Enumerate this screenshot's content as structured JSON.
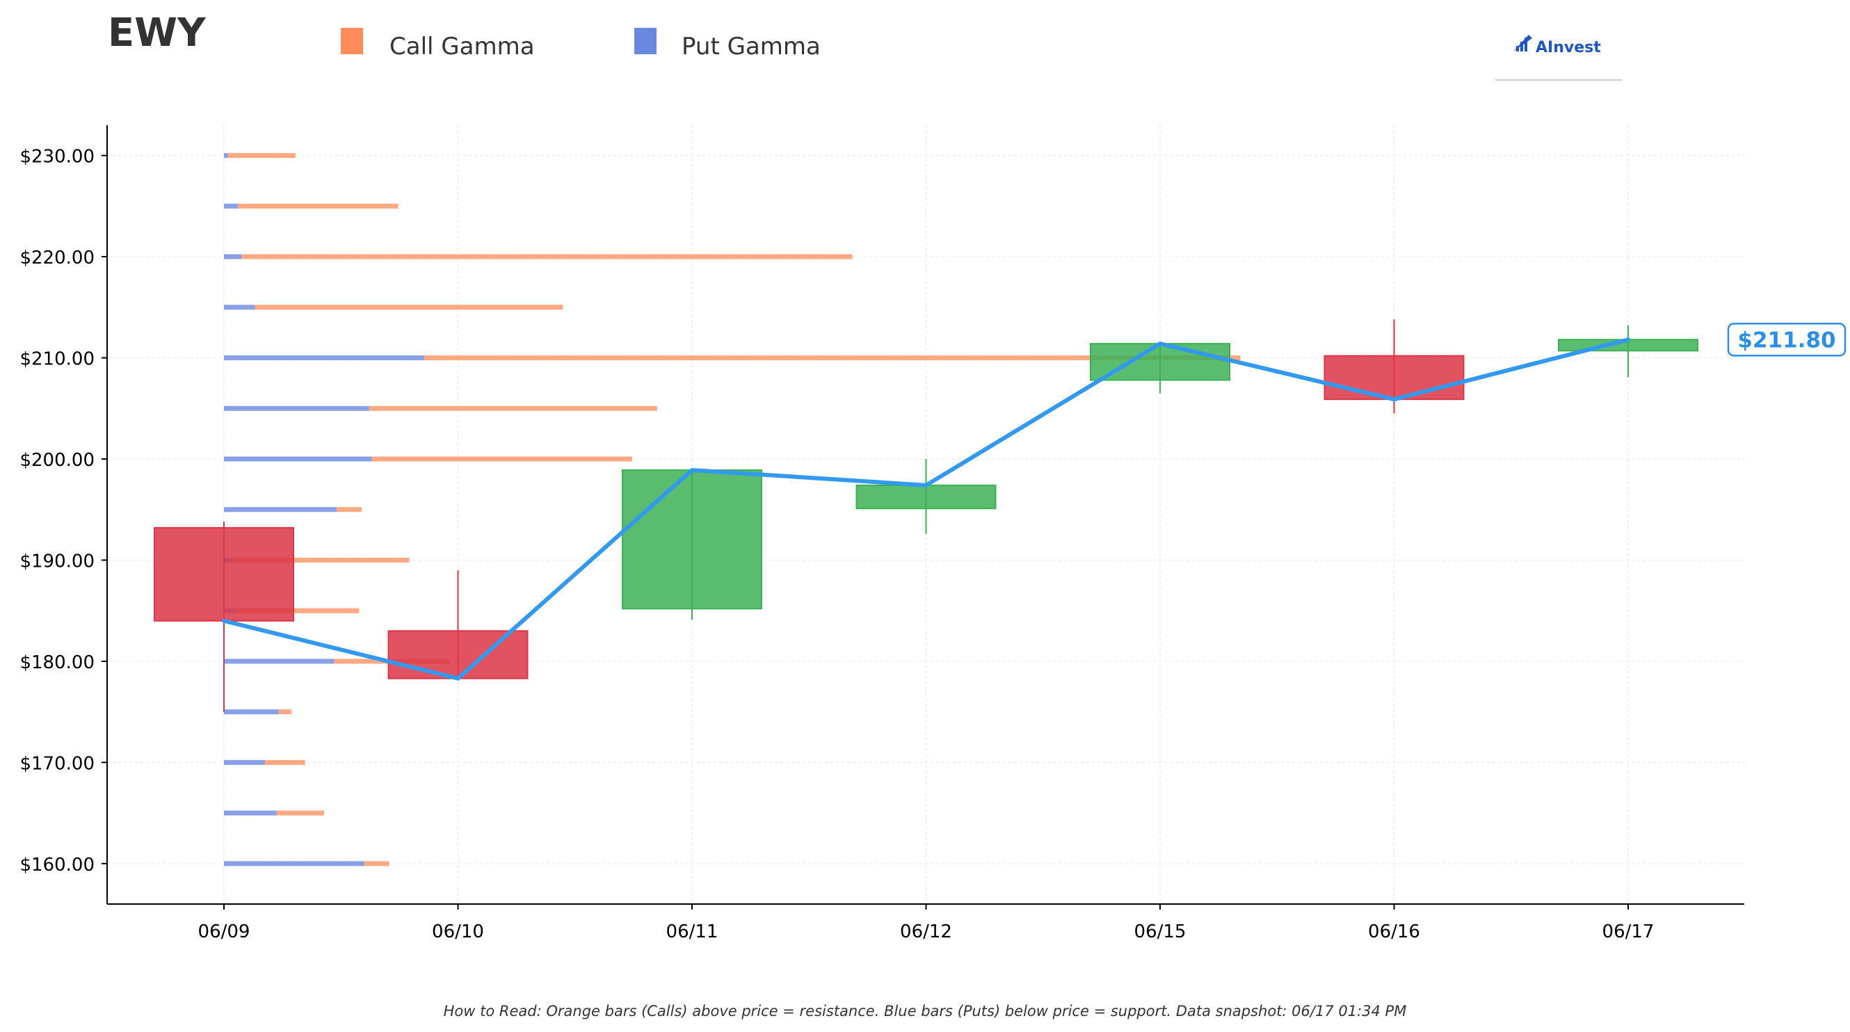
{
  "colors": {
    "call": "#ff8c5a",
    "put": "#6a88e0",
    "candle_up": "#3cb055",
    "candle_down": "#dc3545",
    "close_line": "#3399ee",
    "price_badge": "#2b8fe8",
    "logo": "#1e56c8"
  },
  "logo": {
    "text": "AInvest",
    "icon": "chart-bars-icon"
  },
  "footnote": "How to Read: Orange bars (Calls) above price = resistance. Blue bars (Puts) below price = support. Data snapshot: 06/17 01:34 PM",
  "chart_data": {
    "type": "candlestick-with-horizontal-bars",
    "title": "EWY",
    "legend": [
      {
        "name": "Call Gamma",
        "color": "#ff8c5a"
      },
      {
        "name": "Put Gamma",
        "color": "#6a88e0"
      }
    ],
    "legend_position": "top",
    "categories": [
      "06/09",
      "06/10",
      "06/11",
      "06/12",
      "06/15",
      "06/16",
      "06/17"
    ],
    "ohlc": [
      {
        "date": "06/09",
        "open": 193.2,
        "high": 193.8,
        "low": 175.0,
        "close": 184.0
      },
      {
        "date": "06/10",
        "open": 183.0,
        "high": 189.0,
        "low": 178.3,
        "close": 178.3
      },
      {
        "date": "06/11",
        "open": 185.2,
        "high": 199.0,
        "low": 184.1,
        "close": 198.9
      },
      {
        "date": "06/12",
        "open": 195.1,
        "high": 200.0,
        "low": 192.6,
        "close": 197.4
      },
      {
        "date": "06/15",
        "open": 207.8,
        "high": 211.4,
        "low": 206.5,
        "close": 211.4
      },
      {
        "date": "06/16",
        "open": 210.2,
        "high": 213.8,
        "low": 204.5,
        "close": 205.9
      },
      {
        "date": "06/17",
        "open": 210.7,
        "high": 213.2,
        "low": 208.1,
        "close": 211.8
      }
    ],
    "current_price_label": "$211.80",
    "gamma_strikes": [
      160,
      165,
      170,
      175,
      180,
      185,
      190,
      195,
      200,
      205,
      210,
      215,
      220,
      225,
      230
    ],
    "put_gamma": [
      2.8,
      1.05,
      0.82,
      1.1,
      2.2,
      0.25,
      0.2,
      2.25,
      2.95,
      2.9,
      4.0,
      0.62,
      0.35,
      0.28,
      0.08
    ],
    "call_gamma": [
      0.5,
      0.95,
      0.8,
      0.25,
      2.3,
      2.45,
      3.5,
      0.5,
      5.2,
      5.75,
      16.3,
      6.15,
      12.2,
      3.2,
      1.35
    ],
    "ylim": [
      156,
      233
    ],
    "yticks": [
      160,
      170,
      180,
      190,
      200,
      210,
      220,
      230
    ],
    "ytick_labels": [
      "$160.00",
      "$170.00",
      "$180.00",
      "$190.00",
      "$200.00",
      "$210.00",
      "$220.00",
      "$230.00"
    ],
    "xlabel": "",
    "ylabel": "",
    "grid": true
  }
}
